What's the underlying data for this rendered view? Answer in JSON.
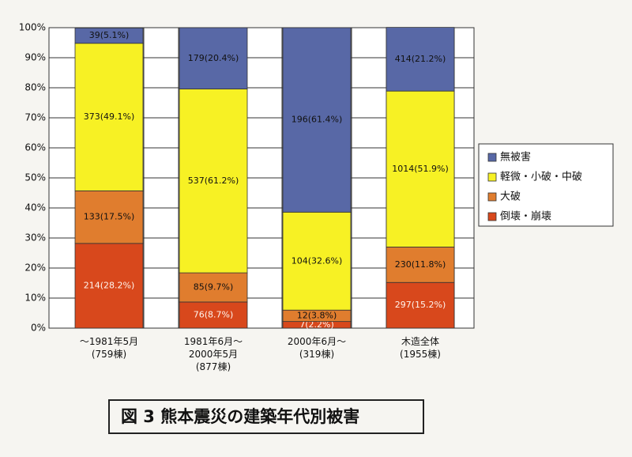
{
  "chart_data": {
    "type": "stacked_bar",
    "title": "図 3 熊本震災の建築年代別被害",
    "categories": [
      "～1981年5月\n(759棟)",
      "1981年6月～\n2000年5月\n(877棟)",
      "2000年6月～\n(319棟)",
      "木造全体\n(1955棟)"
    ],
    "series": [
      {
        "name": "倒壊・崩壊",
        "color": "#d8481c",
        "values": [
          28.2,
          8.7,
          2.2,
          15.2
        ],
        "value_labels": [
          "214(28.2%)",
          "76(8.7%)",
          "7(2.2%)",
          "297(15.2%)"
        ]
      },
      {
        "name": "大破",
        "color": "#e07d2e",
        "values": [
          17.5,
          9.7,
          3.8,
          11.8
        ],
        "value_labels": [
          "133(17.5%)",
          "85(9.7%)",
          "12(3.8%)",
          "230(11.8%)"
        ]
      },
      {
        "name": "軽微・小破・中破",
        "color": "#f7f124",
        "values": [
          49.1,
          61.2,
          32.6,
          51.9
        ],
        "value_labels": [
          "373(49.1%)",
          "537(61.2%)",
          "104(32.6%)",
          "1014(51.9%)"
        ]
      },
      {
        "name": "無被害",
        "color": "#5868a6",
        "values": [
          5.1,
          20.4,
          61.4,
          21.2
        ],
        "value_labels": [
          "39(5.1%)",
          "179(20.4%)",
          "196(61.4%)",
          "414(21.2%)"
        ]
      }
    ],
    "ylim": [
      0,
      100
    ],
    "yticks": [
      {
        "value": 0,
        "label": "0%"
      },
      {
        "value": 10,
        "label": "10%"
      },
      {
        "value": 20,
        "label": "20%"
      },
      {
        "value": 30,
        "label": "30%"
      },
      {
        "value": 40,
        "label": "40%"
      },
      {
        "value": 50,
        "label": "50%"
      },
      {
        "value": 60,
        "label": "60%"
      },
      {
        "value": 70,
        "label": "70%"
      },
      {
        "value": 80,
        "label": "80%"
      },
      {
        "value": 90,
        "label": "90%"
      },
      {
        "value": 100,
        "label": "100%"
      }
    ],
    "grid": true
  }
}
